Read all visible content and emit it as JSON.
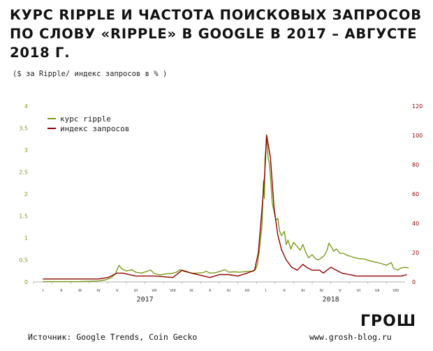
{
  "header": {
    "title": "Курс Ripple и частота поисковых запросов по слову «Ripple» в Google в 2017 – августе 2018 г.",
    "subtitle": "($ за Ripple/ индекс запросов в % )"
  },
  "footer": {
    "source": "Источник: Google Trends, Coin Gecko",
    "site": "www.grosh-blog.ru",
    "logo": "ГРОШ"
  },
  "colors": {
    "price": "#7a9a1a",
    "search": "#8b0000",
    "left_axis": "#7a9a1a",
    "right_axis": "#8b0000"
  },
  "chart_data": {
    "type": "line",
    "legend_position": "top-left",
    "grid": false,
    "x_month_labels": [
      "I",
      "II",
      "III",
      "IV",
      "V",
      "VI",
      "VII",
      "VIII",
      "IX",
      "X",
      "XI",
      "XII",
      "I",
      "II",
      "III",
      "IV",
      "V",
      "VI",
      "VII",
      "VIII"
    ],
    "x_year_labels": [
      "2017",
      "2018"
    ],
    "y_left": {
      "lim": [
        0,
        4
      ],
      "ticks": [
        "0",
        "0.5",
        "1",
        "1.5",
        "2",
        "2.5",
        "3",
        "3.5",
        "4"
      ]
    },
    "y_right": {
      "lim": [
        0,
        120
      ],
      "ticks": [
        "0",
        "20",
        "40",
        "60",
        "80",
        "100",
        "120"
      ]
    },
    "series": [
      {
        "name": "курс ripple",
        "axis": "left",
        "points": [
          [
            0,
            0.006
          ],
          [
            1,
            0.007
          ],
          [
            2,
            0.008
          ],
          [
            3,
            0.02
          ],
          [
            3.4,
            0.05
          ],
          [
            3.7,
            0.1
          ],
          [
            3.9,
            0.18
          ],
          [
            4.0,
            0.28
          ],
          [
            4.1,
            0.38
          ],
          [
            4.25,
            0.3
          ],
          [
            4.5,
            0.25
          ],
          [
            4.8,
            0.28
          ],
          [
            5.0,
            0.22
          ],
          [
            5.3,
            0.2
          ],
          [
            5.6,
            0.24
          ],
          [
            5.8,
            0.27
          ],
          [
            6.0,
            0.19
          ],
          [
            6.3,
            0.16
          ],
          [
            6.6,
            0.18
          ],
          [
            7.0,
            0.2
          ],
          [
            7.2,
            0.22
          ],
          [
            7.4,
            0.28
          ],
          [
            7.6,
            0.24
          ],
          [
            7.8,
            0.22
          ],
          [
            8.0,
            0.2
          ],
          [
            8.3,
            0.2
          ],
          [
            8.6,
            0.21
          ],
          [
            8.8,
            0.24
          ],
          [
            9.0,
            0.2
          ],
          [
            9.3,
            0.21
          ],
          [
            9.6,
            0.25
          ],
          [
            9.8,
            0.28
          ],
          [
            10.0,
            0.22
          ],
          [
            10.3,
            0.23
          ],
          [
            10.6,
            0.22
          ],
          [
            11.0,
            0.24
          ],
          [
            11.3,
            0.24
          ],
          [
            11.45,
            0.28
          ],
          [
            11.55,
            0.4
          ],
          [
            11.65,
            0.7
          ],
          [
            11.8,
            1.3
          ],
          [
            11.88,
            2.3
          ],
          [
            11.93,
            1.9
          ],
          [
            11.96,
            2.8
          ],
          [
            12.0,
            3.0
          ],
          [
            12.04,
            3.35
          ],
          [
            12.08,
            3.2
          ],
          [
            12.13,
            2.8
          ],
          [
            12.2,
            2.7
          ],
          [
            12.28,
            2.25
          ],
          [
            12.35,
            1.8
          ],
          [
            12.45,
            1.6
          ],
          [
            12.55,
            1.4
          ],
          [
            12.65,
            1.45
          ],
          [
            12.75,
            1.15
          ],
          [
            12.85,
            1.05
          ],
          [
            13.0,
            1.15
          ],
          [
            13.1,
            0.85
          ],
          [
            13.2,
            0.95
          ],
          [
            13.35,
            0.75
          ],
          [
            13.5,
            0.9
          ],
          [
            13.7,
            0.8
          ],
          [
            13.85,
            0.72
          ],
          [
            14.0,
            0.85
          ],
          [
            14.15,
            0.68
          ],
          [
            14.3,
            0.55
          ],
          [
            14.5,
            0.62
          ],
          [
            14.7,
            0.52
          ],
          [
            14.85,
            0.5
          ],
          [
            15.0,
            0.55
          ],
          [
            15.15,
            0.6
          ],
          [
            15.3,
            0.72
          ],
          [
            15.4,
            0.88
          ],
          [
            15.5,
            0.82
          ],
          [
            15.65,
            0.7
          ],
          [
            15.8,
            0.75
          ],
          [
            16.0,
            0.65
          ],
          [
            16.2,
            0.65
          ],
          [
            16.4,
            0.6
          ],
          [
            16.6,
            0.58
          ],
          [
            16.8,
            0.55
          ],
          [
            17.0,
            0.53
          ],
          [
            17.3,
            0.52
          ],
          [
            17.6,
            0.48
          ],
          [
            17.9,
            0.45
          ],
          [
            18.2,
            0.42
          ],
          [
            18.5,
            0.38
          ],
          [
            18.75,
            0.44
          ],
          [
            18.9,
            0.3
          ],
          [
            19.1,
            0.27
          ],
          [
            19.3,
            0.32
          ],
          [
            19.5,
            0.33
          ],
          [
            19.7,
            0.32
          ]
        ]
      },
      {
        "name": "индекс запросов",
        "axis": "right",
        "points": [
          [
            0,
            2
          ],
          [
            1,
            2
          ],
          [
            2,
            2
          ],
          [
            3,
            2
          ],
          [
            3.5,
            3
          ],
          [
            4.0,
            6
          ],
          [
            4.3,
            6
          ],
          [
            5,
            4
          ],
          [
            6,
            4
          ],
          [
            7,
            3
          ],
          [
            7.5,
            8
          ],
          [
            8,
            6
          ],
          [
            9,
            3
          ],
          [
            9.5,
            5
          ],
          [
            10,
            5
          ],
          [
            10.5,
            4
          ],
          [
            11,
            6
          ],
          [
            11.4,
            8
          ],
          [
            11.6,
            20
          ],
          [
            11.8,
            50
          ],
          [
            11.95,
            75
          ],
          [
            12.05,
            100
          ],
          [
            12.25,
            85
          ],
          [
            12.45,
            50
          ],
          [
            12.65,
            32
          ],
          [
            12.85,
            22
          ],
          [
            13.1,
            15
          ],
          [
            13.4,
            10
          ],
          [
            13.7,
            8
          ],
          [
            14.0,
            12
          ],
          [
            14.2,
            10
          ],
          [
            14.5,
            8
          ],
          [
            14.9,
            8
          ],
          [
            15.1,
            6
          ],
          [
            15.3,
            8
          ],
          [
            15.5,
            10
          ],
          [
            15.8,
            8
          ],
          [
            16.1,
            6
          ],
          [
            16.5,
            5
          ],
          [
            16.9,
            4
          ],
          [
            17.3,
            4
          ],
          [
            17.7,
            4
          ],
          [
            18.1,
            4
          ],
          [
            18.5,
            4
          ],
          [
            18.9,
            4
          ],
          [
            19.3,
            4
          ],
          [
            19.6,
            5
          ]
        ]
      }
    ]
  }
}
